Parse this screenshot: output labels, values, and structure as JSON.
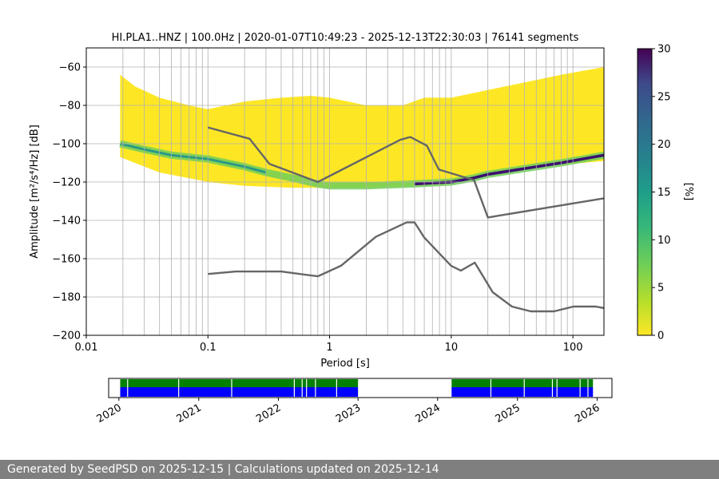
{
  "chart_data": {
    "type": "heatmap",
    "title": "HI.PLA1..HNZ | 100.0Hz | 2020-01-07T10:49:23 - 2025-12-13T22:30:03 | 76141 segments",
    "xlabel": "Period [s]",
    "ylabel": "Amplitude [m²/s⁴/Hz] [dB]",
    "x_scale": "log",
    "xlim": [
      0.01,
      180
    ],
    "ylim": [
      -200,
      -50
    ],
    "x_tick_labels": [
      "0.01",
      "0.1",
      "1",
      "10",
      "100"
    ],
    "y_tick_labels": [
      "−60",
      "−80",
      "−100",
      "−120",
      "−140",
      "−160",
      "−180",
      "−200"
    ],
    "grid": true,
    "colorbar": {
      "label": "[%]",
      "range": [
        0,
        30
      ],
      "tick_labels": [
        "0",
        "5",
        "10",
        "15",
        "20",
        "25",
        "30"
      ],
      "colormap": "viridis_r"
    },
    "psd_density": {
      "envelope_top": [
        [
          0.019,
          -64
        ],
        [
          0.025,
          -70
        ],
        [
          0.04,
          -76
        ],
        [
          0.07,
          -80
        ],
        [
          0.1,
          -82
        ],
        [
          0.2,
          -78
        ],
        [
          0.4,
          -76
        ],
        [
          0.7,
          -75
        ],
        [
          1.0,
          -76
        ],
        [
          2.0,
          -80
        ],
        [
          4.0,
          -80
        ],
        [
          6.0,
          -76
        ],
        [
          10.0,
          -76
        ],
        [
          20.0,
          -72
        ],
        [
          40.0,
          -68
        ],
        [
          80.0,
          -64
        ],
        [
          180.0,
          -60
        ]
      ],
      "envelope_bottom": [
        [
          0.019,
          -107
        ],
        [
          0.025,
          -110
        ],
        [
          0.04,
          -115
        ],
        [
          0.07,
          -118
        ],
        [
          0.1,
          -120
        ],
        [
          0.2,
          -122
        ],
        [
          0.5,
          -123
        ],
        [
          1.0,
          -123
        ],
        [
          2.0,
          -123
        ],
        [
          5.0,
          -122
        ],
        [
          10.0,
          -121
        ],
        [
          15.0,
          -118
        ],
        [
          20.0,
          -116
        ],
        [
          40.0,
          -113
        ],
        [
          80.0,
          -111
        ],
        [
          180.0,
          -109
        ]
      ],
      "mode_curve": [
        [
          0.019,
          -100
        ],
        [
          0.03,
          -103
        ],
        [
          0.05,
          -106
        ],
        [
          0.1,
          -108
        ],
        [
          0.2,
          -112
        ],
        [
          0.3,
          -115
        ],
        [
          0.5,
          -118
        ],
        [
          0.8,
          -121
        ],
        [
          1.0,
          -122
        ],
        [
          2.0,
          -122
        ],
        [
          5.0,
          -121
        ],
        [
          10.0,
          -120
        ],
        [
          15.0,
          -118
        ],
        [
          20.0,
          -116
        ],
        [
          40.0,
          -113
        ],
        [
          80.0,
          -110
        ],
        [
          180.0,
          -106
        ]
      ],
      "mode_value_percent": 30
    },
    "series": [
      {
        "line": "upper-noise-model",
        "color": "#666666",
        "x": [
          0.1,
          0.22,
          0.32,
          0.8,
          3.8,
          4.6,
          6.3,
          7.9,
          15.4,
          20.0,
          180.0
        ],
        "y": [
          -91.5,
          -97.4,
          -110.5,
          -120.0,
          -98.0,
          -96.5,
          -101.0,
          -113.5,
          -119.0,
          -138.5,
          -128.5
        ]
      },
      {
        "line": "lower-noise-model",
        "color": "#666666",
        "x": [
          0.1,
          0.17,
          0.4,
          0.8,
          1.24,
          2.4,
          4.3,
          5.0,
          6.0,
          10.0,
          12.0,
          15.6,
          21.9,
          31.6,
          45.0,
          70.0,
          101.0,
          154.0,
          180.0
        ],
        "y": [
          -168.0,
          -166.7,
          -166.7,
          -169.2,
          -163.7,
          -148.6,
          -141.1,
          -141.1,
          -149.0,
          -163.8,
          -166.2,
          -162.1,
          -177.5,
          -185.0,
          -187.5,
          -187.5,
          -185.0,
          -185.0,
          -185.8
        ]
      }
    ]
  },
  "availability": {
    "year_labels": [
      "2020",
      "2021",
      "2022",
      "2023",
      "2024",
      "2025",
      "2026"
    ],
    "x_range": [
      "2019-11-15",
      "2026-03-10"
    ],
    "data_blocks": [
      [
        "2020-01-07",
        "2023-01-01"
      ],
      [
        "2024-03-05",
        "2025-12-13"
      ]
    ],
    "gaps": [
      "2020-02-10",
      "2020-10-01",
      "2021-06-01",
      "2022-03-15",
      "2022-04-20",
      "2022-05-10",
      "2022-06-20",
      "2022-09-25",
      "2024-09-01",
      "2025-02-01",
      "2025-06-10",
      "2025-07-01",
      "2025-10-15",
      "2025-11-20"
    ],
    "data_color": "#0000ff",
    "gap_free_color": "#008000"
  },
  "footer": {
    "text": "Generated by SeedPSD on 2025-12-15 | Calculations updated on 2025-12-14"
  },
  "colors": {
    "footer_bg": "#7f7f7f",
    "line": "#666666",
    "grid": "#b0b0b0"
  }
}
